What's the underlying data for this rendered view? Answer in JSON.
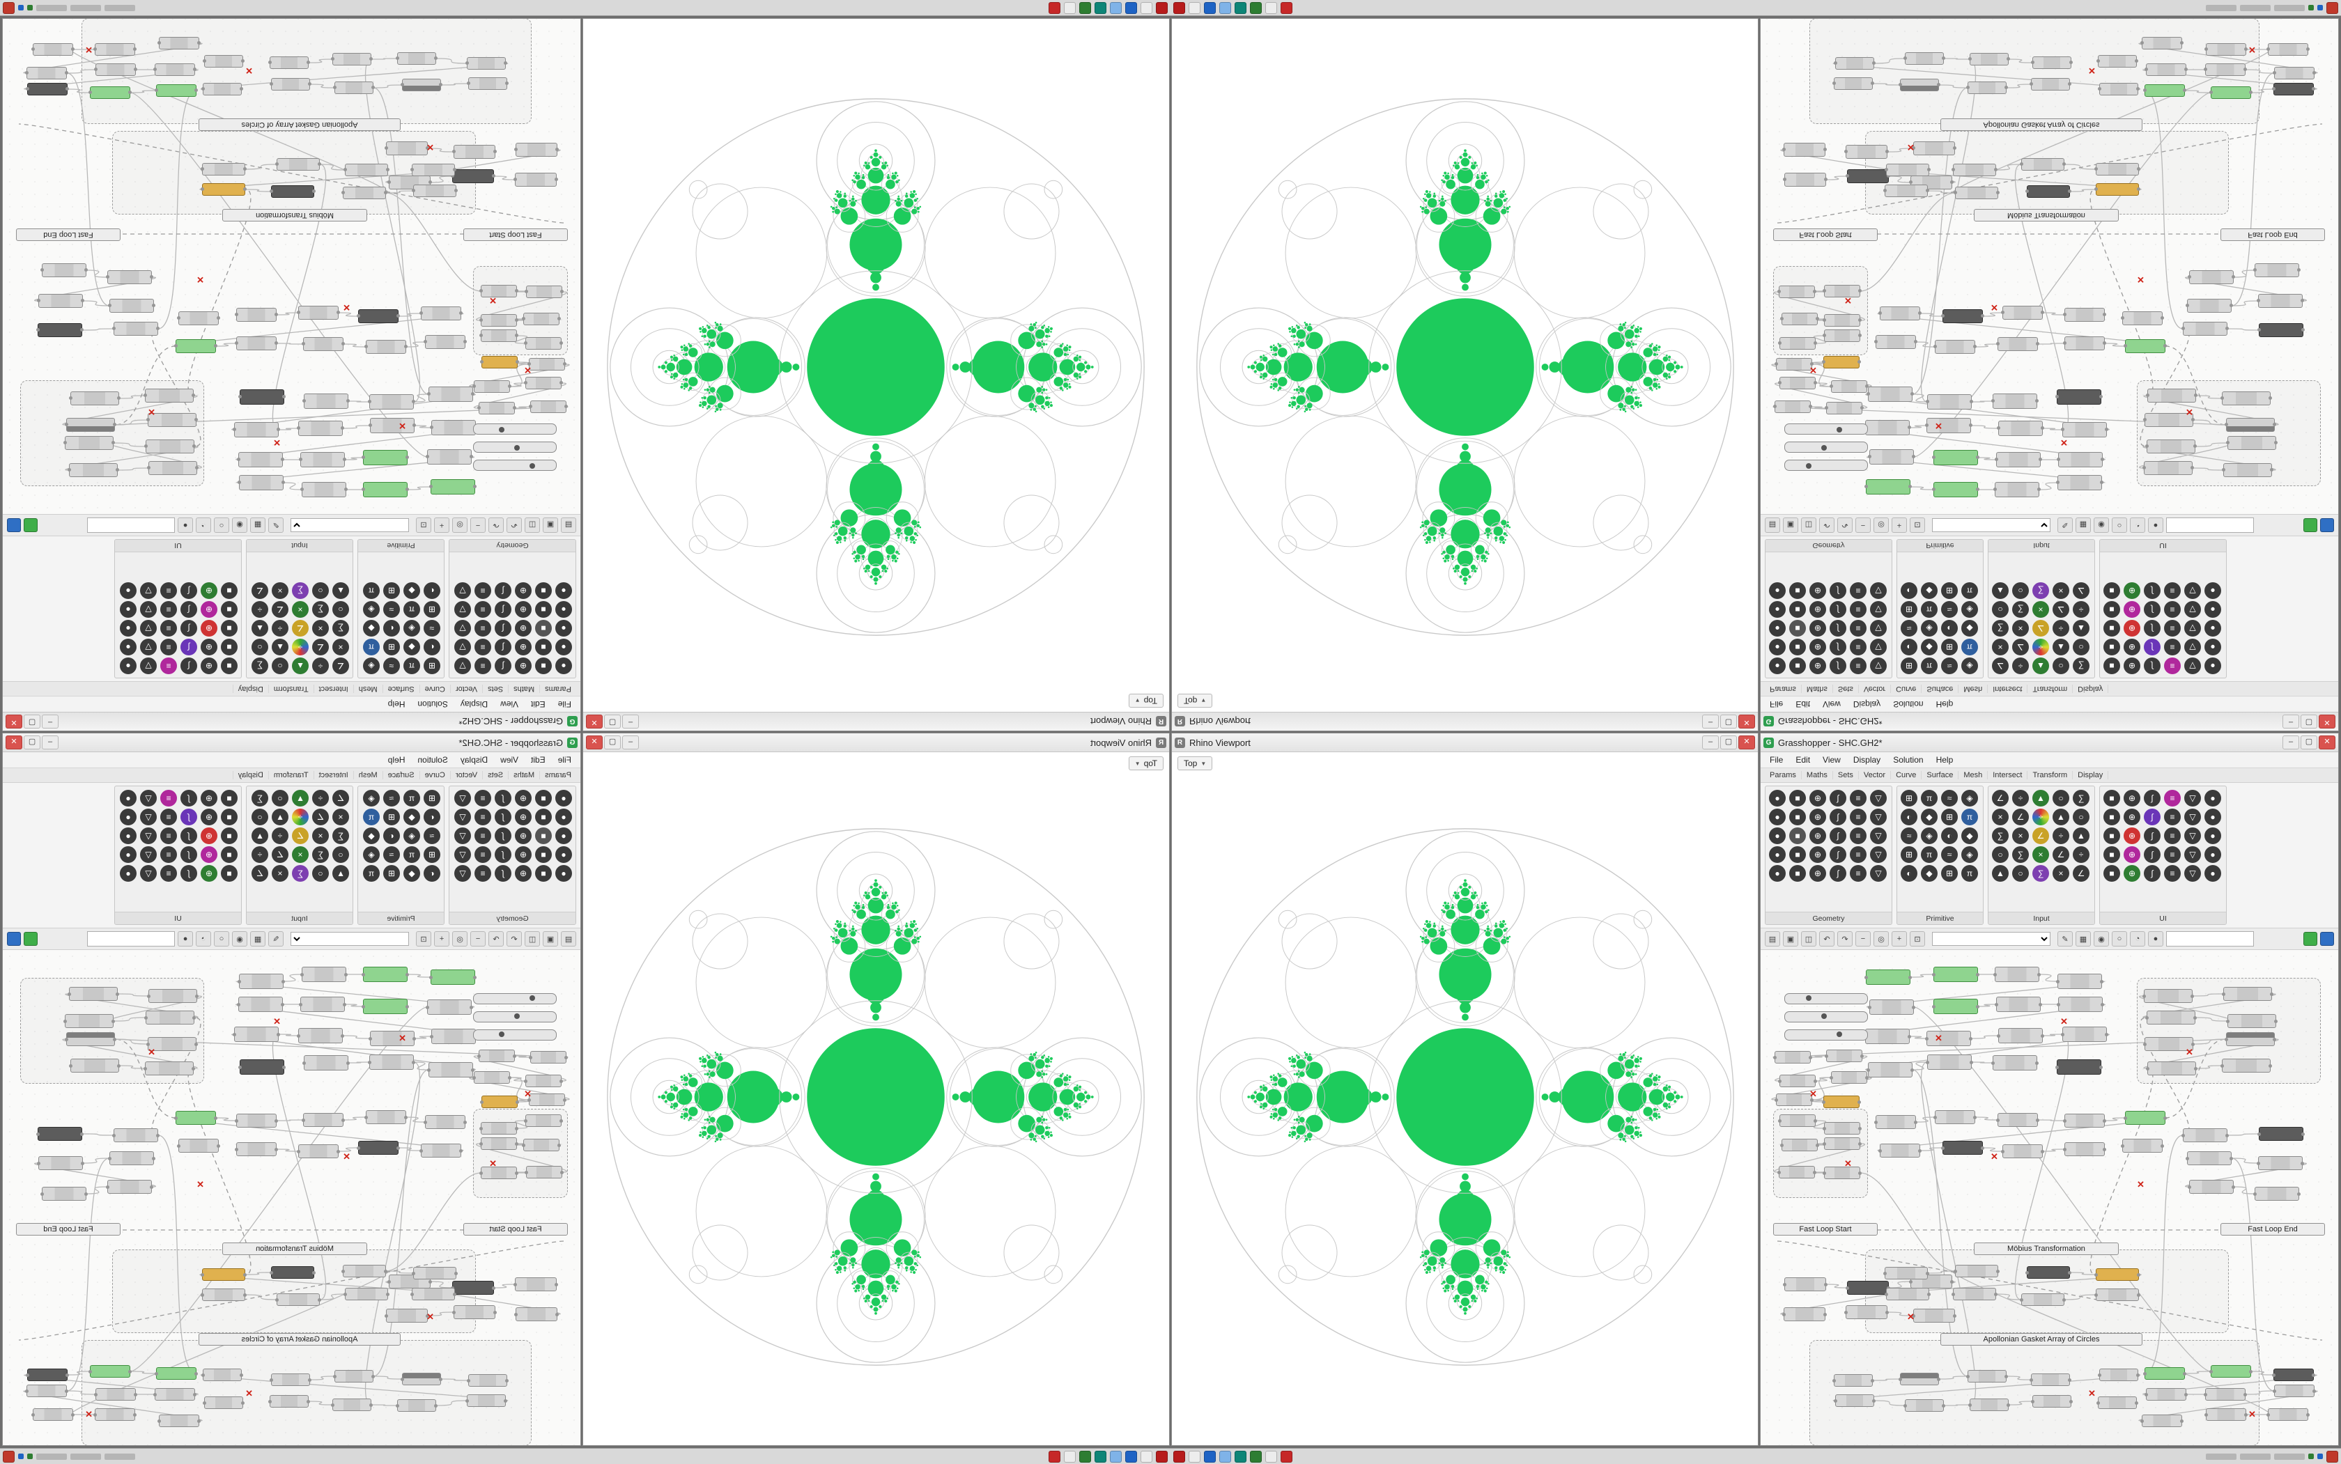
{
  "taskbar": {
    "app_icon_colors": [
      "#b71c1c",
      "#ededed",
      "#1e63c4",
      "#7fb3e8",
      "#0e8577",
      "#2e7d32",
      "#ececec",
      "#c62828"
    ],
    "tray_dot_colors": [
      "#2e7d32",
      "#1e63c4"
    ],
    "corner_color": "#c0392b"
  },
  "rhino": {
    "window_title": "Rhino Viewport",
    "viewport_tab": "Top",
    "tab_caret": "▼",
    "window_buttons": {
      "minimize": "–",
      "maximize": "▢",
      "close": "✕"
    }
  },
  "grasshopper": {
    "window_title": "Grasshopper - SHC.GH2*",
    "app_glyph": "G",
    "app_color": "#2e9e4f",
    "menu": [
      "File",
      "Edit",
      "View",
      "Display",
      "Solution",
      "Help"
    ],
    "tabs": [
      "Params",
      "Maths",
      "Sets",
      "Vector",
      "Curve",
      "Surface",
      "Mesh",
      "Intersect",
      "Transform",
      "Display"
    ],
    "ribbon_panels": [
      {
        "label": "Geometry",
        "cols": 6,
        "rows": 5
      },
      {
        "label": "Primitive",
        "cols": 4,
        "rows": 5
      },
      {
        "label": "Input",
        "cols": 5,
        "rows": 5
      },
      {
        "label": "UI",
        "cols": 6,
        "rows": 5
      }
    ],
    "toolbar_icons": [
      "new-file-icon",
      "open-file-icon",
      "save-file-icon",
      "undo-icon",
      "redo-icon",
      "zoom-out-icon",
      "zoom-100-icon",
      "zoom-in-icon",
      "zoom-extents-icon",
      "sketch-icon",
      "group-icon",
      "cluster-icon",
      "preview-off-icon",
      "preview-wire-icon",
      "preview-shaded-icon"
    ],
    "search_placeholder": "",
    "toggle_buttons": [
      {
        "name": "preview-green-toggle",
        "color": "#3fae49"
      },
      {
        "name": "preview-blue-toggle",
        "color": "#2f6fc4"
      }
    ],
    "window_buttons": {
      "minimize": "–",
      "maximize": "▢",
      "close": "✕"
    },
    "canvas_labels": {
      "loop_start": "Fast Loop Start",
      "loop_end": "Fast Loop End",
      "group_mobius": "Möbius Transformation",
      "group_apollonian": "Apollonian Gasket Array of Circles"
    }
  },
  "fractal": {
    "fill_green": "#1dcb5c",
    "stroke_gray": "#c9c9c9"
  }
}
